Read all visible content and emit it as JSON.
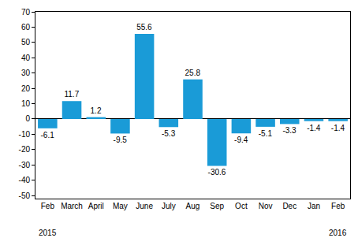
{
  "chart_data": {
    "type": "bar",
    "categories": [
      "Feb",
      "March",
      "April",
      "May",
      "June",
      "July",
      "Aug",
      "Sep",
      "Oct",
      "Nov",
      "Dec",
      "Jan",
      "Feb"
    ],
    "values": [
      -6.1,
      11.7,
      1.2,
      -9.5,
      55.6,
      -5.3,
      25.8,
      -30.6,
      -9.4,
      -5.1,
      -3.3,
      -1.4,
      -1.4
    ],
    "color": "#1a9bd7",
    "ylim": [
      -52,
      70
    ],
    "yticks": [
      -50,
      -40,
      -30,
      -20,
      -10,
      0,
      10,
      20,
      30,
      40,
      50,
      60,
      70
    ],
    "grid": false,
    "data_labels": true,
    "annotations": [
      {
        "text": "2015",
        "category": 0
      },
      {
        "text": "2016",
        "category": 12
      }
    ]
  }
}
